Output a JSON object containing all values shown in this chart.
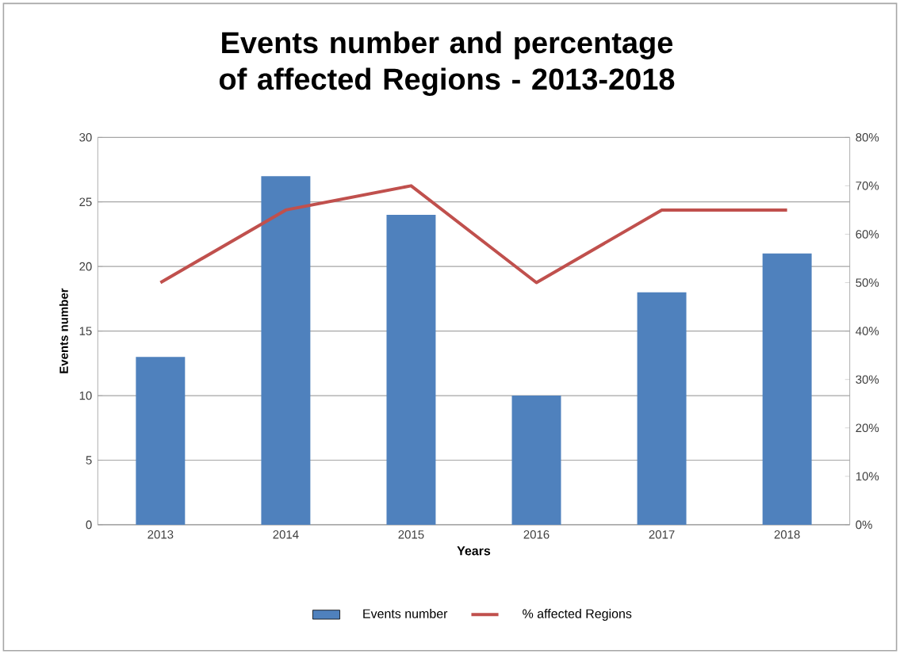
{
  "chart_data": {
    "type": "bar",
    "title": "Events number and percentage of affected Regions - 2013-2018",
    "xlabel": "Years",
    "ylabel": "Events number",
    "categories": [
      "2013",
      "2014",
      "2015",
      "2016",
      "2017",
      "2018"
    ],
    "series": [
      {
        "name": "Events number",
        "color": "#4f81bd",
        "values": [
          13,
          27,
          24,
          10,
          18,
          21
        ]
      },
      {
        "name": "% affected Regions",
        "type": "line",
        "axis": "y2",
        "color": "#c0504d",
        "values": [
          50,
          65,
          70,
          50,
          65,
          65
        ]
      }
    ],
    "ylim": [
      0,
      30
    ],
    "yticks": [
      0,
      5,
      10,
      15,
      20,
      25,
      30
    ],
    "y2lim": [
      0,
      80
    ],
    "y2ticks": [
      {
        "value": 0,
        "label": "0%"
      },
      {
        "value": 10,
        "label": "10%"
      },
      {
        "value": 20,
        "label": "20%"
      },
      {
        "value": 30,
        "label": "30%"
      },
      {
        "value": 40,
        "label": "40%"
      },
      {
        "value": 50,
        "label": "50%"
      },
      {
        "value": 60,
        "label": "60%"
      },
      {
        "value": 70,
        "label": "70%"
      },
      {
        "value": 80,
        "label": "80%"
      }
    ],
    "grid": "y",
    "legend": "bottom"
  }
}
